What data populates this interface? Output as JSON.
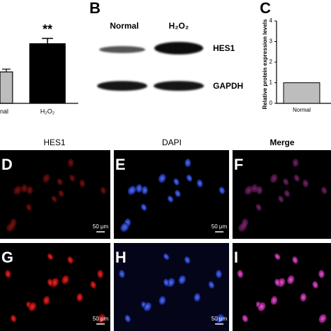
{
  "panel_a": {
    "annotation": "**",
    "labels": [
      "nal",
      "H₂O₂"
    ]
  },
  "panel_b": {
    "label": "B",
    "lanes": [
      "Normal",
      "H₂O₂"
    ],
    "bands": [
      "HES1",
      "GAPDH"
    ]
  },
  "chart_data": {
    "type": "bar",
    "label": "C",
    "ylabel": "Relative protein expression levels",
    "categories": [
      "Normal"
    ],
    "values": [
      1
    ],
    "color": "#bdbdbd",
    "ylim": [
      0,
      4
    ],
    "yticks": [
      0,
      1,
      2,
      3,
      4
    ]
  },
  "panel_images": {
    "headers": [
      "HES1",
      "DAPI",
      "Merge"
    ],
    "panels": [
      {
        "label": "D",
        "scale_bar": "50 μm"
      },
      {
        "label": "E",
        "scale_bar": "50 μm"
      },
      {
        "label": "F"
      },
      {
        "label": "G",
        "scale_bar": "50 μm"
      },
      {
        "label": "H",
        "scale_bar": "50 μm"
      },
      {
        "label": "I"
      }
    ]
  }
}
